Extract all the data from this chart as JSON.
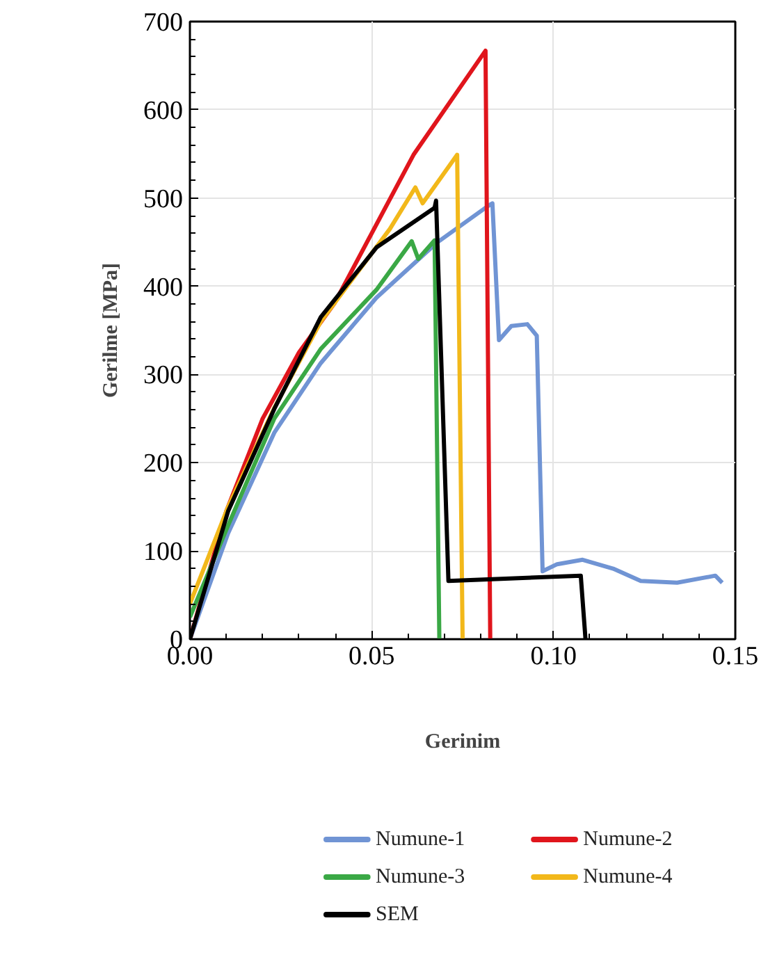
{
  "chart_data": {
    "type": "line",
    "xlabel": "Gerinim",
    "ylabel": "Gerilme [MPa]",
    "xlim": [
      0,
      0.15
    ],
    "ylim": [
      0,
      700
    ],
    "xticks": [
      {
        "value": 0,
        "label": "0.00"
      },
      0.05,
      {
        "value": 0.1,
        "label": "0.10"
      },
      0.15
    ],
    "yticks": [
      0,
      100,
      200,
      300,
      400,
      500,
      600,
      700
    ],
    "grid": true,
    "legend": "bottom",
    "marker": "none",
    "line_style": "solid",
    "series": [
      {
        "name": "Numune-1",
        "color": "#7094d4",
        "x": [
          0,
          0.0105,
          0.0232,
          0.036,
          0.0513,
          0.0678,
          0.082,
          0.0832,
          0.085,
          0.0884,
          0.0928,
          0.0954,
          0.097,
          0.101,
          0.108,
          0.1164,
          0.124,
          0.134,
          0.1445,
          0.1464
        ],
        "values": [
          0,
          120,
          234,
          313,
          387,
          449,
          491,
          494,
          339,
          355,
          357,
          344,
          77,
          85,
          90,
          80,
          66,
          64,
          72,
          64
        ]
      },
      {
        "name": "Numune-2",
        "color": "#e0151c",
        "x": [
          0,
          0.01,
          0.02,
          0.03,
          0.0398,
          0.0615,
          0.0813,
          0.0826
        ],
        "values": [
          0,
          145,
          250,
          325,
          381,
          549,
          667,
          0
        ]
      },
      {
        "name": "Numune-3",
        "color": "#3aa845",
        "x": [
          0,
          0.0105,
          0.0232,
          0.036,
          0.0513,
          0.061,
          0.0628,
          0.0673,
          0.0686
        ],
        "values": [
          25,
          129,
          250,
          329,
          396,
          451,
          431,
          452,
          0
        ]
      },
      {
        "name": "Numune-4",
        "color": "#f2b81a",
        "x": [
          0,
          0.0105,
          0.0232,
          0.036,
          0.055,
          0.062,
          0.064,
          0.0716,
          0.0735,
          0.075
        ],
        "values": [
          40,
          150,
          262,
          360,
          465,
          512,
          494,
          538,
          549,
          0
        ]
      },
      {
        "name": "SEM",
        "color": "#000000",
        "x": [
          0,
          0.0105,
          0.0232,
          0.036,
          0.0513,
          0.0673,
          0.0677,
          0.0711,
          0.1075,
          0.1088
        ],
        "values": [
          0,
          145,
          261,
          365,
          444,
          489,
          497,
          66,
          72,
          0
        ]
      }
    ]
  }
}
